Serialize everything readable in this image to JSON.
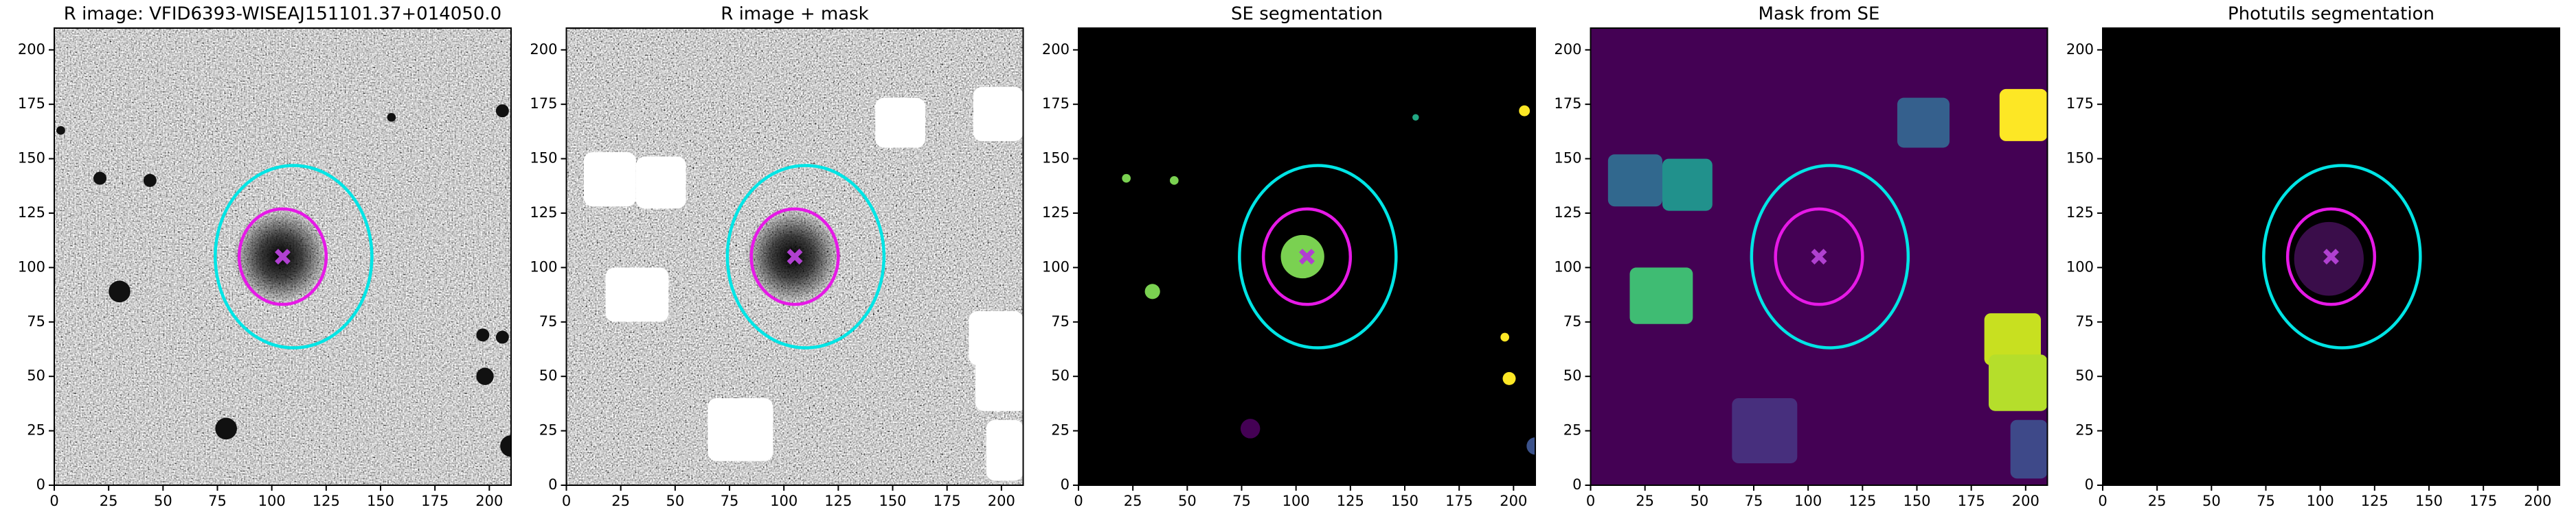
{
  "chart_data": [
    {
      "type": "image",
      "title": "R image: VFID6393-WISEAJ151101.37+014050.0",
      "xlim": [
        0,
        210
      ],
      "ylim": [
        0,
        210
      ],
      "xticks": [
        0,
        25,
        50,
        75,
        100,
        125,
        150,
        175,
        200
      ],
      "yticks": [
        0,
        25,
        50,
        75,
        100,
        125,
        150,
        175,
        200
      ],
      "ellipses": [
        {
          "color": "#00e5e5",
          "cx": 110,
          "cy": 105,
          "rx": 36,
          "ry": 42
        },
        {
          "color": "#e619e6",
          "cx": 105,
          "cy": 105,
          "rx": 20,
          "ry": 22
        }
      ],
      "marker": {
        "x": 105,
        "y": 105,
        "color": "#b040d0"
      }
    },
    {
      "type": "image",
      "title": "R image + mask",
      "xlim": [
        0,
        210
      ],
      "ylim": [
        0,
        210
      ],
      "xticks": [
        0,
        25,
        50,
        75,
        100,
        125,
        150,
        175,
        200
      ],
      "yticks": [
        0,
        25,
        50,
        75,
        100,
        125,
        150,
        175,
        200
      ],
      "ellipses": [
        {
          "color": "#00e5e5",
          "cx": 110,
          "cy": 105,
          "rx": 36,
          "ry": 42
        },
        {
          "color": "#e619e6",
          "cx": 105,
          "cy": 105,
          "rx": 20,
          "ry": 22
        }
      ],
      "marker": {
        "x": 105,
        "y": 105,
        "color": "#b040d0"
      }
    },
    {
      "type": "image",
      "title": "SE segmentation",
      "xlim": [
        0,
        210
      ],
      "ylim": [
        0,
        210
      ],
      "xticks": [
        0,
        25,
        50,
        75,
        100,
        125,
        150,
        175,
        200
      ],
      "yticks": [
        0,
        25,
        50,
        75,
        100,
        125,
        150,
        175,
        200
      ],
      "ellipses": [
        {
          "color": "#00e5e5",
          "cx": 110,
          "cy": 105,
          "rx": 36,
          "ry": 42
        },
        {
          "color": "#e619e6",
          "cx": 105,
          "cy": 105,
          "rx": 20,
          "ry": 22
        }
      ],
      "marker": {
        "x": 105,
        "y": 105,
        "color": "#b040d0"
      }
    },
    {
      "type": "image",
      "title": "Mask from SE",
      "xlim": [
        0,
        210
      ],
      "ylim": [
        0,
        210
      ],
      "xticks": [
        0,
        25,
        50,
        75,
        100,
        125,
        150,
        175,
        200
      ],
      "yticks": [
        0,
        25,
        50,
        75,
        100,
        125,
        150,
        175,
        200
      ],
      "ellipses": [
        {
          "color": "#00e5e5",
          "cx": 110,
          "cy": 105,
          "rx": 36,
          "ry": 42
        },
        {
          "color": "#e619e6",
          "cx": 105,
          "cy": 105,
          "rx": 20,
          "ry": 22
        }
      ],
      "marker": {
        "x": 105,
        "y": 105,
        "color": "#b040d0"
      }
    },
    {
      "type": "image",
      "title": "Photutils segmentation",
      "xlim": [
        0,
        210
      ],
      "ylim": [
        0,
        210
      ],
      "xticks": [
        0,
        25,
        50,
        75,
        100,
        125,
        150,
        175,
        200
      ],
      "yticks": [
        0,
        25,
        50,
        75,
        100,
        125,
        150,
        175,
        200
      ],
      "ellipses": [
        {
          "color": "#00e5e5",
          "cx": 110,
          "cy": 105,
          "rx": 36,
          "ry": 42
        },
        {
          "color": "#e619e6",
          "cx": 105,
          "cy": 105,
          "rx": 20,
          "ry": 22
        }
      ],
      "marker": {
        "x": 105,
        "y": 105,
        "color": "#b040d0"
      }
    }
  ]
}
